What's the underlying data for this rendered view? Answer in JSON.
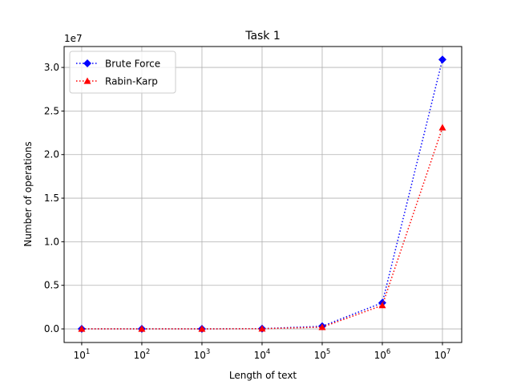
{
  "chart_data": {
    "type": "line",
    "title": "Task 1",
    "x_label": "Length of text",
    "y_label": "Number of operations",
    "y_offset_label": "1e7",
    "x_scale": "log",
    "grid": true,
    "legend_position": "upper left",
    "x": [
      10,
      100,
      1000,
      10000,
      100000,
      1000000,
      10000000
    ],
    "series": [
      {
        "name": "Brute Force",
        "color": "#0000ff",
        "marker": "diamond",
        "values": [
          30,
          300,
          3000,
          30000,
          300000,
          3000000,
          30900000
        ]
      },
      {
        "name": "Rabin-Karp",
        "color": "#ff0000",
        "marker": "triangle",
        "values": [
          20,
          200,
          2000,
          20000,
          200000,
          2700000,
          23100000
        ]
      }
    ],
    "xlim": [
      5.1,
      20900000
    ],
    "ylim": [
      -1560000,
      32400000
    ],
    "xticks": [
      {
        "value": 10,
        "label": "10",
        "exponent": "1"
      },
      {
        "value": 100,
        "label": "10",
        "exponent": "2"
      },
      {
        "value": 1000,
        "label": "10",
        "exponent": "3"
      },
      {
        "value": 10000,
        "label": "10",
        "exponent": "4"
      },
      {
        "value": 100000,
        "label": "10",
        "exponent": "5"
      },
      {
        "value": 1000000,
        "label": "10",
        "exponent": "6"
      },
      {
        "value": 10000000,
        "label": "10",
        "exponent": "7"
      }
    ],
    "yticks": [
      {
        "value": 0,
        "label": "0.0"
      },
      {
        "value": 5000000,
        "label": "0.5"
      },
      {
        "value": 10000000,
        "label": "1.0"
      },
      {
        "value": 15000000,
        "label": "1.5"
      },
      {
        "value": 20000000,
        "label": "2.0"
      },
      {
        "value": 25000000,
        "label": "2.5"
      },
      {
        "value": 30000000,
        "label": "3.0"
      }
    ]
  }
}
